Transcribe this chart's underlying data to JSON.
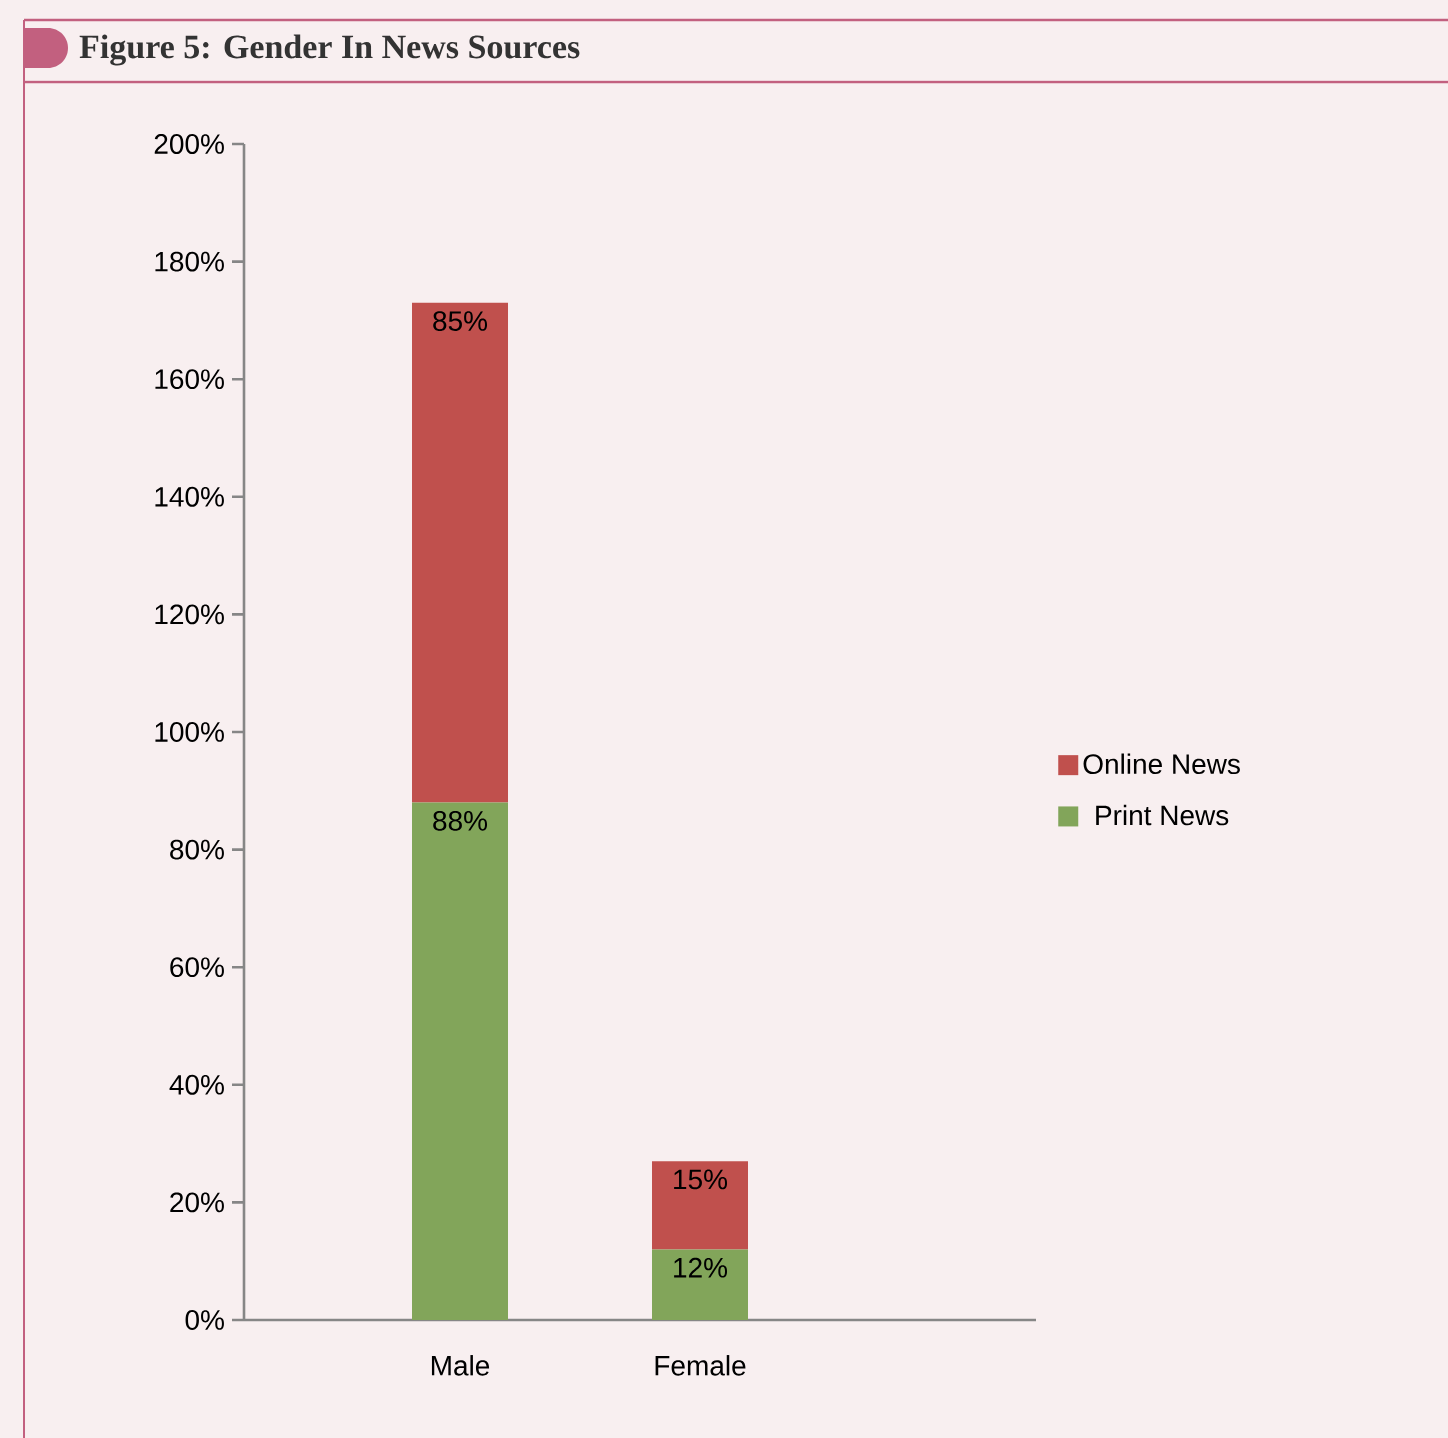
{
  "chart_data": {
    "type": "bar",
    "title": "Figure 5:  Gender In News Sources",
    "categories": [
      "Male",
      "Female"
    ],
    "stacked": true,
    "series": [
      {
        "name": "Print News",
        "color": "#82a55a",
        "values": [
          88,
          12
        ],
        "value_labels": [
          "88%",
          "12%"
        ]
      },
      {
        "name": "Online News",
        "color": "#c0504d",
        "values": [
          85,
          15
        ],
        "value_labels": [
          "85%",
          "15%"
        ]
      }
    ],
    "ylim": [
      0,
      200
    ],
    "yticks": [
      {
        "value": 0,
        "label": "0%"
      },
      {
        "value": 20,
        "label": "20%"
      },
      {
        "value": 40,
        "label": "40%"
      },
      {
        "value": 60,
        "label": "60%"
      },
      {
        "value": 80,
        "label": "80%"
      },
      {
        "value": 100,
        "label": "100%"
      },
      {
        "value": 120,
        "label": "120%"
      },
      {
        "value": 140,
        "label": "140%"
      },
      {
        "value": 160,
        "label": "160%"
      },
      {
        "value": 180,
        "label": "180%"
      },
      {
        "value": 200,
        "label": "200%"
      }
    ],
    "legend": "right",
    "grid": false
  }
}
